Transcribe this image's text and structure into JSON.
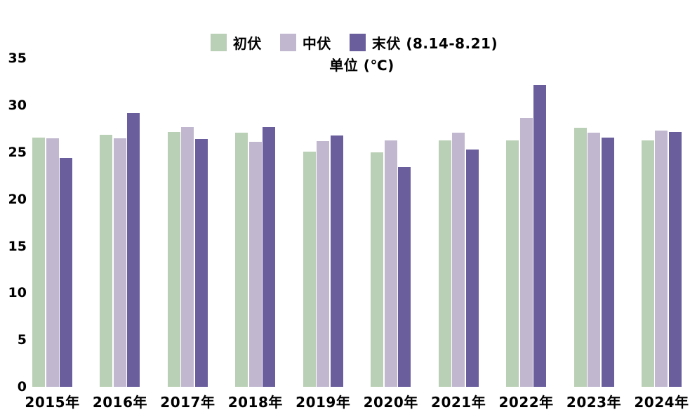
{
  "subtitle": "单位 (℃)",
  "colors": {
    "chufu": "#bad0b6",
    "zhongfu": "#c1b8d0",
    "mofu": "#6a5e9d",
    "text": "#000000",
    "background": "#ffffff"
  },
  "chart_data": {
    "type": "bar",
    "title": "",
    "unit_label": "单位 (℃)",
    "categories": [
      "2015年",
      "2016年",
      "2017年",
      "2018年",
      "2019年",
      "2020年",
      "2021年",
      "2022年",
      "2023年",
      "2024年"
    ],
    "series": [
      {
        "name": "初伏",
        "color": "#bad0b6",
        "values": [
          26.6,
          26.9,
          27.2,
          27.1,
          25.1,
          25.0,
          26.3,
          26.3,
          27.6,
          26.3
        ]
      },
      {
        "name": "中伏",
        "color": "#c1b8d0",
        "values": [
          26.5,
          26.5,
          27.7,
          26.1,
          26.2,
          26.3,
          27.1,
          28.7,
          27.1,
          27.3
        ]
      },
      {
        "name": "末伏 (8.14-8.21)",
        "color": "#6a5e9d",
        "values": [
          24.4,
          29.2,
          26.4,
          27.7,
          26.8,
          23.4,
          25.3,
          32.2,
          26.6,
          27.2
        ]
      }
    ],
    "xlabel": "",
    "ylabel": "单位 (℃)",
    "ylim": [
      0,
      35
    ],
    "yticks": [
      0,
      5,
      10,
      15,
      20,
      25,
      30,
      35
    ],
    "grid": false,
    "legend_position": "top-center"
  }
}
